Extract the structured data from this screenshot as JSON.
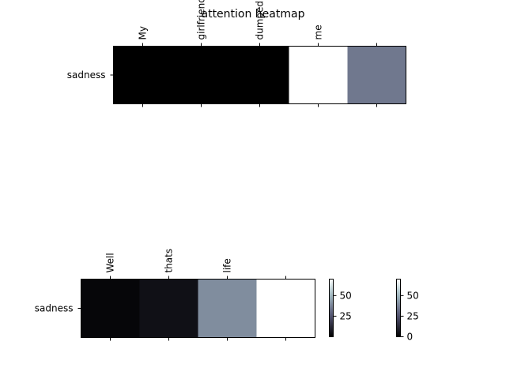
{
  "chart_data": [
    {
      "type": "heatmap",
      "title": "attention heatmap",
      "rows": [
        "sadness"
      ],
      "columns": [
        "My",
        "girlfriend",
        "dumped",
        "me",
        ""
      ],
      "values": [
        [
          0,
          0,
          0,
          70,
          35
        ]
      ],
      "colormap": "bone",
      "vmin": 0,
      "vmax": 70
    },
    {
      "type": "heatmap",
      "rows": [
        "sadness"
      ],
      "columns": [
        "Well",
        "thats",
        "life",
        ""
      ],
      "values": [
        [
          2,
          5,
          40,
          70
        ]
      ],
      "colormap": "bone",
      "vmin": 0,
      "vmax": 70
    }
  ],
  "colorbars": [
    {
      "ticks": [
        25,
        50
      ],
      "vmin": 0,
      "vmax": 70
    },
    {
      "ticks": [
        0,
        25,
        50
      ],
      "vmin": 0,
      "vmax": 70
    }
  ]
}
